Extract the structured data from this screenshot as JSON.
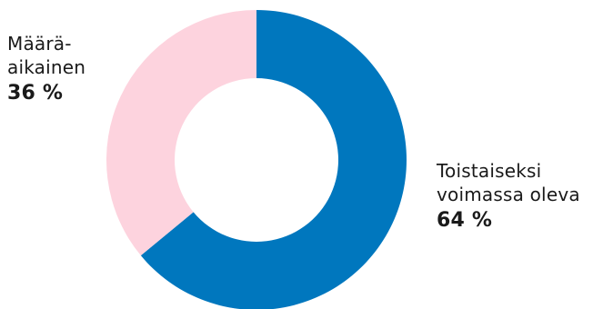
{
  "chart_data": {
    "type": "pie",
    "donut": true,
    "slices": [
      {
        "label": "Toistaiseksi voimassa oleva",
        "value": 64,
        "value_label": "64 %",
        "color": "#0077be"
      },
      {
        "label": "Määrä-\naikainen",
        "value": 36,
        "value_label": "36 %",
        "color": "#fdd3de"
      }
    ]
  }
}
